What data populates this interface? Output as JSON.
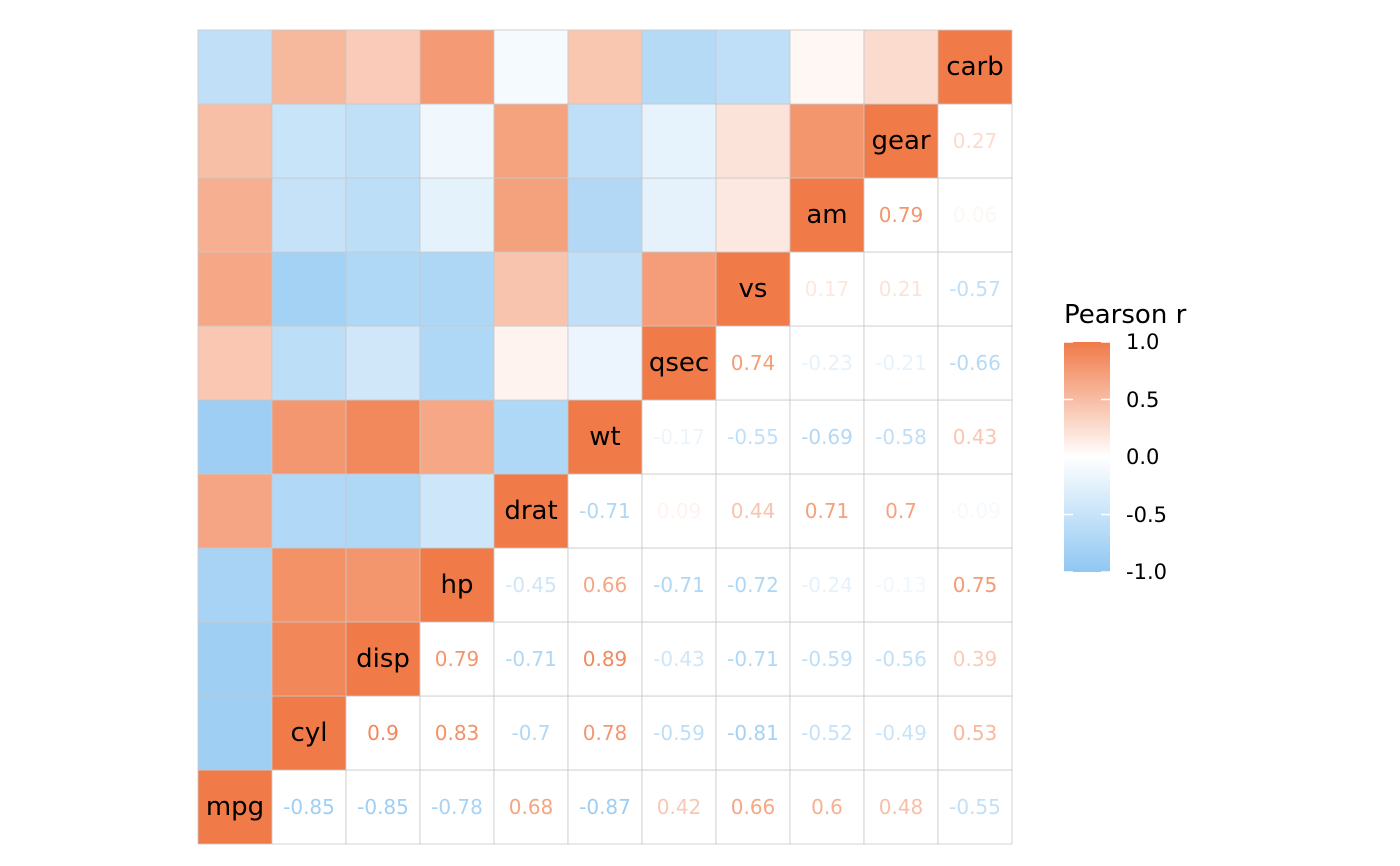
{
  "chart_data": {
    "type": "heatmap",
    "variables": [
      "mpg",
      "cyl",
      "disp",
      "hp",
      "drat",
      "wt",
      "qsec",
      "vs",
      "am",
      "gear",
      "carb"
    ],
    "correlation_matrix": [
      [
        1.0,
        -0.85,
        -0.85,
        -0.78,
        0.68,
        -0.87,
        0.42,
        0.66,
        0.6,
        0.48,
        -0.55
      ],
      [
        -0.85,
        1.0,
        0.9,
        0.83,
        -0.7,
        0.78,
        -0.59,
        -0.81,
        -0.52,
        -0.49,
        0.53
      ],
      [
        -0.85,
        0.9,
        1.0,
        0.79,
        -0.71,
        0.89,
        -0.43,
        -0.71,
        -0.59,
        -0.56,
        0.39
      ],
      [
        -0.78,
        0.83,
        0.79,
        1.0,
        -0.45,
        0.66,
        -0.71,
        -0.72,
        -0.24,
        -0.13,
        0.75
      ],
      [
        0.68,
        -0.7,
        -0.71,
        -0.45,
        1.0,
        -0.71,
        0.09,
        0.44,
        0.71,
        0.7,
        -0.09
      ],
      [
        -0.87,
        0.78,
        0.89,
        0.66,
        -0.71,
        1.0,
        -0.17,
        -0.55,
        -0.69,
        -0.58,
        0.43
      ],
      [
        0.42,
        -0.59,
        -0.43,
        -0.71,
        0.09,
        -0.17,
        1.0,
        0.74,
        -0.23,
        -0.21,
        -0.66
      ],
      [
        0.66,
        -0.81,
        -0.71,
        -0.72,
        0.44,
        -0.55,
        0.74,
        1.0,
        0.17,
        0.21,
        -0.57
      ],
      [
        0.6,
        -0.52,
        -0.59,
        -0.24,
        0.71,
        -0.69,
        -0.23,
        0.17,
        1.0,
        0.79,
        0.06
      ],
      [
        0.48,
        -0.49,
        -0.56,
        -0.13,
        0.7,
        -0.58,
        -0.21,
        0.21,
        0.79,
        1.0,
        0.27
      ],
      [
        -0.55,
        0.53,
        0.39,
        0.75,
        -0.09,
        0.43,
        -0.66,
        -0.57,
        0.06,
        0.27,
        1.0
      ]
    ],
    "value_labels": [
      [
        "",
        "-0.85",
        "-0.85",
        "-0.78",
        "0.68",
        "-0.87",
        "0.42",
        "0.66",
        "0.6",
        "0.48",
        "-0.55"
      ],
      [
        "",
        "",
        "0.9",
        "0.83",
        "-0.7",
        "0.78",
        "-0.59",
        "-0.81",
        "-0.52",
        "-0.49",
        "0.53"
      ],
      [
        "",
        "",
        "",
        "0.79",
        "-0.71",
        "0.89",
        "-0.43",
        "-0.71",
        "-0.59",
        "-0.56",
        "0.39"
      ],
      [
        "",
        "",
        "",
        "",
        "-0.45",
        "0.66",
        "-0.71",
        "-0.72",
        "-0.24",
        "-0.13",
        "0.75"
      ],
      [
        "",
        "",
        "",
        "",
        "",
        "-0.71",
        "0.09",
        "0.44",
        "0.71",
        "0.7",
        "-0.09"
      ],
      [
        "",
        "",
        "",
        "",
        "",
        "",
        "-0.17",
        "-0.55",
        "-0.69",
        "-0.58",
        "0.43"
      ],
      [
        "",
        "",
        "",
        "",
        "",
        "",
        "",
        "0.74",
        "-0.23",
        "-0.21",
        "-0.66"
      ],
      [
        "",
        "",
        "",
        "",
        "",
        "",
        "",
        "",
        "0.17",
        "0.21",
        "-0.57"
      ],
      [
        "",
        "",
        "",
        "",
        "",
        "",
        "",
        "",
        "",
        "0.79",
        "0.06"
      ],
      [
        "",
        "",
        "",
        "",
        "",
        "",
        "",
        "",
        "",
        "",
        "0.27"
      ],
      [
        "",
        "",
        "",
        "",
        "",
        "",
        "",
        "",
        "",
        "",
        ""
      ]
    ],
    "legend": {
      "title": "Pearson r",
      "ticks": [
        "1.0",
        "0.5",
        "0.0",
        "-0.5",
        "-1.0"
      ],
      "tick_values": [
        1.0,
        0.5,
        0.0,
        -0.5,
        -1.0
      ],
      "range": [
        -1.0,
        1.0
      ],
      "placement": "right"
    },
    "colors": {
      "high": "#F07A48",
      "mid": "#FFFFFF",
      "low": "#8FC7F2",
      "grid": "#C8C8C8"
    },
    "layout_note_shape": "lower triangle colored tiles, diagonal variable names, upper triangle value labels"
  }
}
